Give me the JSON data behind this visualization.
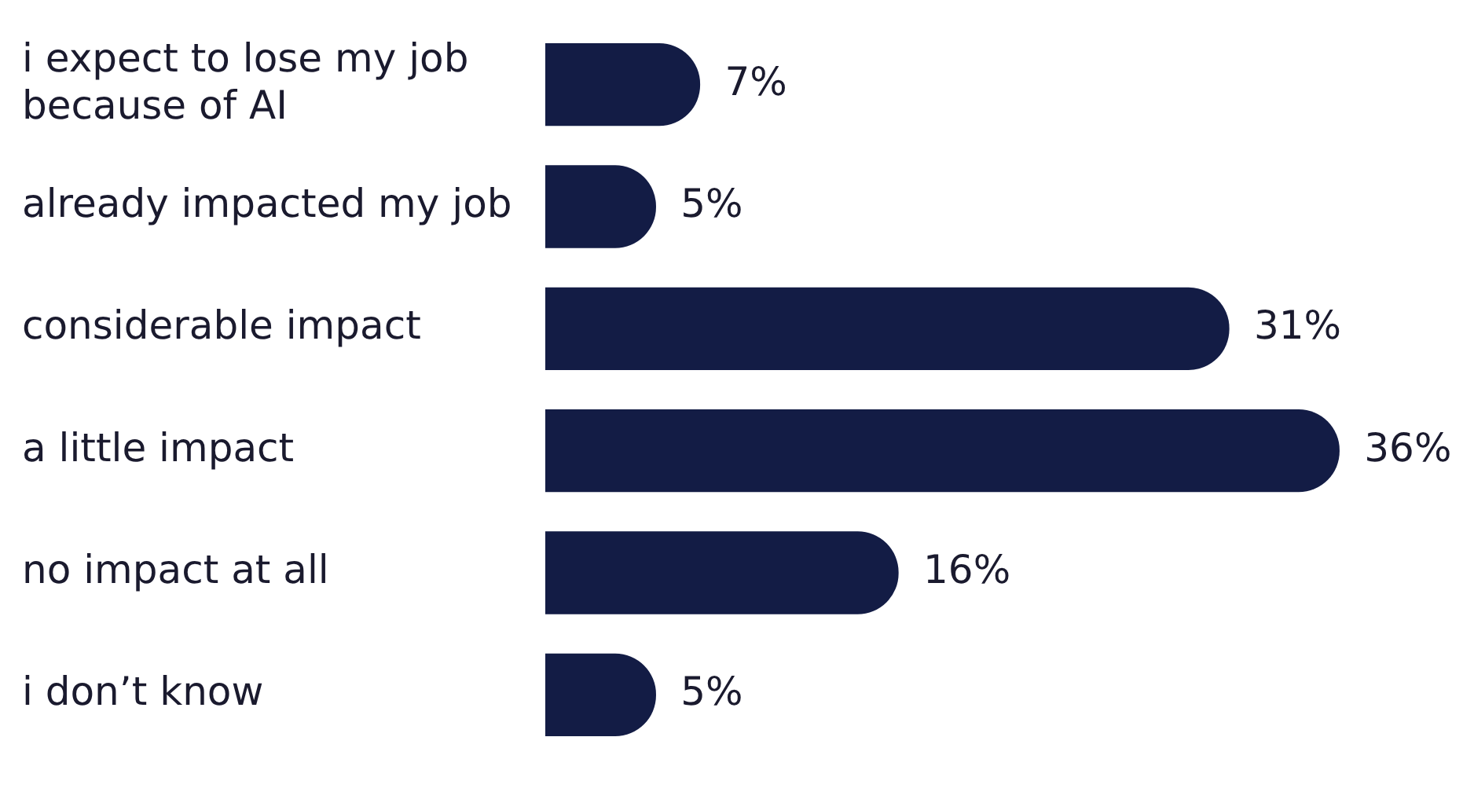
{
  "chart_data": {
    "type": "bar",
    "orientation": "horizontal",
    "categories": [
      "i expect to lose my job because of AI",
      "already impacted my job",
      "considerable impact",
      "a little impact",
      "no impact at all",
      "i don’t know"
    ],
    "values": [
      7,
      5,
      31,
      36,
      16,
      5
    ],
    "value_labels": [
      "7%",
      "5%",
      "31%",
      "36%",
      "16%",
      "5%"
    ],
    "color": "#131c45",
    "grid": false,
    "legend": false
  }
}
